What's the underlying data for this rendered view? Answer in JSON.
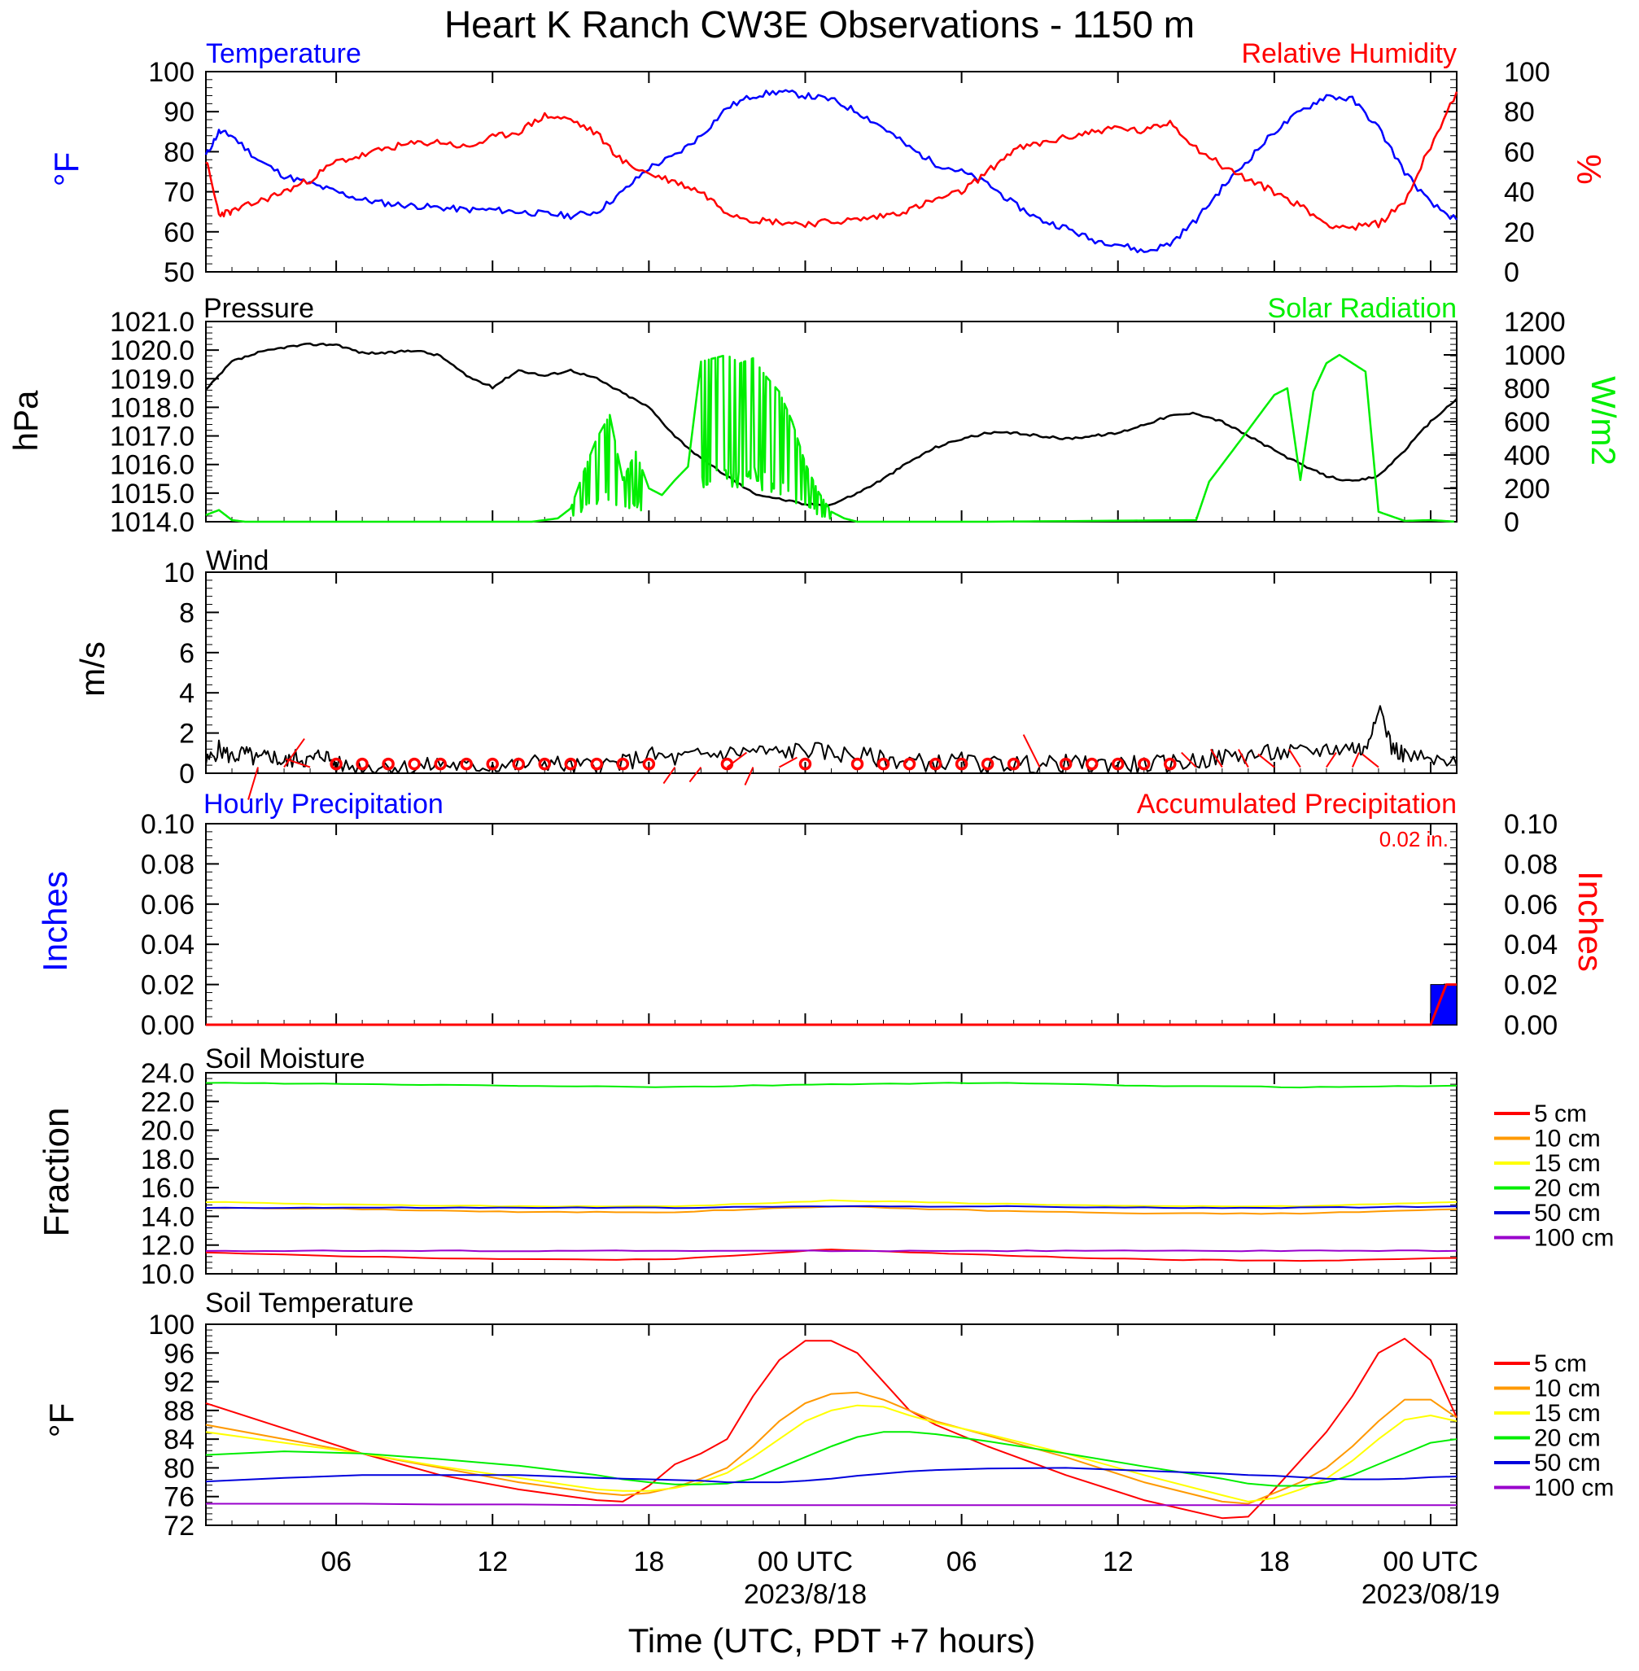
{
  "title": "Heart K Ranch CW3E Observations - 1150 m",
  "x_axis": {
    "label": "Time (UTC, PDT +7 hours)",
    "range_hours": [
      0,
      48
    ],
    "ticks": [
      {
        "h": 5,
        "label": "06"
      },
      {
        "h": 11,
        "label": "12"
      },
      {
        "h": 17,
        "label": "18"
      },
      {
        "h": 23,
        "label": "00 UTC",
        "date": "2023/8/18"
      },
      {
        "h": 29,
        "label": "06"
      },
      {
        "h": 35,
        "label": "12"
      },
      {
        "h": 41,
        "label": "18"
      },
      {
        "h": 47,
        "label": "00 UTC",
        "date": "2023/08/19"
      }
    ]
  },
  "legend_soil": [
    "5 cm",
    "10 cm",
    "15 cm",
    "20 cm",
    "50 cm",
    "100 cm"
  ],
  "colors": {
    "blue": "#0000ff",
    "red": "#ff0000",
    "green": "#00ee00",
    "black": "#000000",
    "d5": "#ff0000",
    "d10": "#ff9900",
    "d15": "#ffff00",
    "d20": "#00ee00",
    "d50": "#0000dd",
    "d100": "#9900cc"
  },
  "chart_data": [
    {
      "type": "line",
      "panel": "temperature_humidity",
      "left_title": "Temperature",
      "right_title": "Relative Humidity",
      "ylabel_left": "°F",
      "ylabel_right": "%",
      "ylim_left": [
        50,
        100
      ],
      "ylim_right": [
        0,
        100
      ],
      "yticks_left": [
        50,
        60,
        70,
        80,
        90,
        100
      ],
      "yticks_right": [
        0,
        20,
        40,
        60,
        80,
        100
      ],
      "series": [
        {
          "axis": "left",
          "color": "#0000ff",
          "x": [
            0,
            0.5,
            1,
            2,
            3,
            4,
            5,
            6,
            7,
            8,
            9,
            10,
            11,
            12,
            13,
            14,
            15,
            16,
            17,
            18,
            19,
            20,
            21,
            22,
            23,
            24,
            25,
            26,
            27,
            28,
            29,
            30,
            31,
            32,
            33,
            34,
            35,
            36,
            37,
            38,
            39,
            40,
            41,
            42,
            43,
            44,
            45,
            46,
            47,
            48
          ],
          "values": [
            79,
            85,
            84,
            78,
            74,
            72,
            70,
            68,
            67,
            66.5,
            66,
            65.5,
            65.5,
            65,
            64.5,
            64,
            65,
            70,
            76,
            79,
            84,
            91,
            94,
            95,
            94,
            93,
            90,
            86,
            81,
            77,
            75,
            72,
            67,
            63,
            61,
            58,
            57,
            55,
            57,
            63,
            71,
            78,
            85,
            90,
            94,
            93,
            86,
            75,
            67,
            63
          ]
        },
        {
          "axis": "right",
          "color": "#ff0000",
          "x": [
            0,
            0.5,
            1,
            2,
            3,
            4,
            5,
            6,
            7,
            8,
            9,
            10,
            11,
            12,
            13,
            14,
            15,
            16,
            17,
            18,
            19,
            20,
            21,
            22,
            23,
            24,
            25,
            26,
            27,
            28,
            29,
            30,
            31,
            32,
            33,
            34,
            35,
            36,
            37,
            38,
            39,
            40,
            41,
            42,
            43,
            44,
            45,
            46,
            47,
            48
          ],
          "values": [
            56,
            29,
            30,
            35,
            40,
            46,
            55,
            58,
            62,
            64,
            65,
            62,
            67,
            70,
            78,
            76,
            69,
            55,
            49,
            45,
            40,
            30,
            26,
            25,
            24,
            25,
            26,
            28,
            31,
            36,
            40,
            50,
            61,
            64,
            67,
            70,
            72,
            70,
            75,
            62,
            53,
            46,
            40,
            33,
            24,
            22,
            24,
            35,
            63,
            90
          ]
        }
      ]
    },
    {
      "type": "line",
      "panel": "pressure_solar",
      "left_title": "Pressure",
      "right_title": "Solar Radiation",
      "ylabel_left": "hPa",
      "ylabel_right": "W/m2",
      "ylim_left": [
        1014.0,
        1021.0
      ],
      "ylim_right": [
        0,
        1200
      ],
      "yticks_left": [
        "1014.0",
        "1015.0",
        "1016.0",
        "1017.0",
        "1018.0",
        "1019.0",
        "1020.0",
        "1021.0"
      ],
      "yticks_right": [
        0,
        200,
        400,
        600,
        800,
        1000,
        1200
      ],
      "series": [
        {
          "axis": "left",
          "color": "#000000",
          "x": [
            0,
            1,
            2,
            3,
            4,
            5,
            6,
            7,
            8,
            9,
            10,
            11,
            12,
            13,
            14,
            15,
            16,
            17,
            18,
            19,
            20,
            21,
            22,
            23,
            24,
            25,
            26,
            27,
            28,
            29,
            30,
            31,
            32,
            33,
            34,
            35,
            36,
            37,
            38,
            39,
            40,
            41,
            42,
            43,
            44,
            45,
            46,
            47,
            48
          ],
          "values": [
            1018.6,
            1019.6,
            1019.9,
            1020.1,
            1020.2,
            1020.2,
            1019.9,
            1019.9,
            1020.0,
            1019.8,
            1019.1,
            1018.7,
            1019.3,
            1019.1,
            1019.3,
            1019.0,
            1018.5,
            1018.0,
            1017.0,
            1016.2,
            1015.6,
            1015.0,
            1014.8,
            1014.6,
            1014.6,
            1015.0,
            1015.5,
            1016.1,
            1016.6,
            1016.9,
            1017.1,
            1017.1,
            1017.0,
            1016.9,
            1017.0,
            1017.1,
            1017.4,
            1017.7,
            1017.8,
            1017.5,
            1017.0,
            1016.5,
            1016.0,
            1015.6,
            1015.4,
            1015.6,
            1016.5,
            1017.5,
            1018.3
          ]
        },
        {
          "axis": "right",
          "color": "#00ee00",
          "x": [
            0,
            0.5,
            1,
            1.5,
            3,
            6,
            10,
            12.5,
            13.5,
            14,
            14.5,
            15,
            15.5,
            16,
            16.5,
            17,
            17.5,
            18,
            18.5,
            19,
            19.5,
            20,
            20.5,
            21,
            21.5,
            22,
            22.5,
            23,
            23.5,
            24,
            24.5,
            25,
            30,
            38,
            38.5,
            40,
            41,
            41.5,
            42,
            42.5,
            43,
            43.5,
            44,
            44.5,
            45,
            46,
            47,
            48
          ],
          "values": [
            40,
            70,
            10,
            0,
            0,
            0,
            0,
            0,
            20,
            80,
            300,
            500,
            640,
            250,
            420,
            200,
            160,
            250,
            330,
            960,
            980,
            1000,
            950,
            980,
            870,
            780,
            600,
            350,
            180,
            60,
            20,
            0,
            0,
            10,
            240,
            550,
            760,
            800,
            250,
            780,
            950,
            1000,
            950,
            900,
            60,
            5,
            10,
            0
          ]
        }
      ]
    },
    {
      "type": "line",
      "panel": "wind",
      "left_title": "Wind",
      "ylabel_left": "m/s",
      "ylim_left": [
        0,
        10
      ],
      "yticks_left": [
        0,
        2,
        4,
        6,
        8,
        10
      ],
      "series": [
        {
          "axis": "left",
          "color": "#000000",
          "x": [
            0,
            0.5,
            1,
            1.5,
            2,
            2.5,
            3,
            3.5,
            4,
            4.5,
            5,
            6,
            7,
            8,
            9,
            10,
            11,
            12,
            13,
            14,
            15,
            16,
            17,
            18,
            19,
            20,
            21,
            22,
            23,
            24,
            25,
            26,
            27,
            28,
            29,
            30,
            31,
            32,
            33,
            34,
            35,
            36,
            37,
            38,
            39,
            40,
            41,
            42,
            43,
            44,
            44.5,
            45,
            45.5,
            46,
            47,
            48
          ],
          "values": [
            0.5,
            1.2,
            0.8,
            1.0,
            0.6,
            0.9,
            0.5,
            0.8,
            0.6,
            1.0,
            0.4,
            0.3,
            0.4,
            0.2,
            0.5,
            0.3,
            0.4,
            0.4,
            0.6,
            0.3,
            0.4,
            0.5,
            0.9,
            0.7,
            0.9,
            1.0,
            1.1,
            1.0,
            1.2,
            1.0,
            0.9,
            0.7,
            0.6,
            0.5,
            0.6,
            0.4,
            0.5,
            0.4,
            0.5,
            0.4,
            0.5,
            0.4,
            0.5,
            0.6,
            0.8,
            0.9,
            1.0,
            1.0,
            1.2,
            1.3,
            1.1,
            3.5,
            1.3,
            0.9,
            0.6,
            0.4
          ]
        }
      ]
    },
    {
      "type": "bar",
      "panel": "precipitation",
      "left_title": "Hourly Precipitation",
      "right_title": "Accumulated Precipitation",
      "annotation": "0.02 in.",
      "ylabel_left": "Inches",
      "ylabel_right": "Inches",
      "ylim_left": [
        0,
        0.1
      ],
      "ylim_right": [
        0,
        0.1
      ],
      "yticks": [
        "0.00",
        "0.02",
        "0.04",
        "0.06",
        "0.08",
        "0.10"
      ],
      "hourly": [
        {
          "x_start": 47,
          "x_end": 48,
          "value": 0.02
        }
      ],
      "accumulated": {
        "x": [
          0,
          47,
          47.3,
          47.6,
          48
        ],
        "values": [
          0,
          0,
          0.01,
          0.02,
          0.02
        ]
      }
    },
    {
      "type": "line",
      "panel": "soil_moisture",
      "left_title": "Soil Moisture",
      "ylabel_left": "Fraction",
      "ylim_left": [
        10.0,
        24.0
      ],
      "yticks_left": [
        "10.0",
        "12.0",
        "14.0",
        "16.0",
        "18.0",
        "20.0",
        "22.0",
        "24.0"
      ],
      "x": [
        0,
        6,
        12,
        18,
        24,
        30,
        36,
        42,
        48
      ],
      "series": [
        {
          "name": "5 cm",
          "color": "#ff0000",
          "values": [
            11.5,
            11.2,
            11.0,
            11.0,
            11.7,
            11.3,
            11.0,
            10.9,
            11.1
          ]
        },
        {
          "name": "10 cm",
          "color": "#ff9900",
          "values": [
            14.6,
            14.5,
            14.3,
            14.3,
            14.7,
            14.4,
            14.2,
            14.2,
            14.5
          ]
        },
        {
          "name": "15 cm",
          "color": "#ffff00",
          "values": [
            15.0,
            14.8,
            14.7,
            14.7,
            15.1,
            14.9,
            14.7,
            14.7,
            15.0
          ]
        },
        {
          "name": "20 cm",
          "color": "#00ee00",
          "values": [
            23.3,
            23.2,
            23.1,
            23.0,
            23.2,
            23.3,
            23.1,
            23.0,
            23.1
          ]
        },
        {
          "name": "50 cm",
          "color": "#0000dd",
          "values": [
            14.6,
            14.6,
            14.6,
            14.6,
            14.7,
            14.7,
            14.6,
            14.6,
            14.7
          ]
        },
        {
          "name": "100 cm",
          "color": "#9900cc",
          "values": [
            11.6,
            11.6,
            11.6,
            11.6,
            11.6,
            11.6,
            11.6,
            11.6,
            11.6
          ]
        }
      ]
    },
    {
      "type": "line",
      "panel": "soil_temperature",
      "left_title": "Soil Temperature",
      "ylabel_left": "°F",
      "ylim_left": [
        72,
        100
      ],
      "yticks_left": [
        72,
        76,
        80,
        84,
        88,
        92,
        96,
        100
      ],
      "x": [
        0,
        3,
        6,
        9,
        12,
        15,
        16,
        17,
        18,
        19,
        20,
        21,
        22,
        23,
        24,
        25,
        26,
        27,
        28,
        30,
        33,
        36,
        39,
        40,
        41,
        42,
        43,
        44,
        45,
        46,
        47,
        48
      ],
      "series": [
        {
          "name": "5 cm",
          "color": "#ff0000",
          "values": [
            89,
            85.5,
            82,
            79,
            77,
            75.5,
            75.3,
            77.5,
            80.5,
            82,
            84,
            90,
            95,
            97.7,
            97.7,
            96,
            92,
            88,
            86,
            83,
            79,
            75.5,
            73,
            73.2,
            77,
            81,
            85,
            90,
            96,
            98,
            95,
            87
          ]
        },
        {
          "name": "10 cm",
          "color": "#ff9900",
          "values": [
            86,
            84,
            82,
            80,
            78,
            76.5,
            76.2,
            76.5,
            77.3,
            78.5,
            80,
            83,
            86.5,
            89,
            90.3,
            90.5,
            89.5,
            88,
            86.5,
            84.5,
            81.5,
            78,
            75.3,
            75,
            76.5,
            78,
            80,
            83,
            86.5,
            89.5,
            89.5,
            87
          ]
        },
        {
          "name": "15 cm",
          "color": "#ffff00",
          "values": [
            85,
            83.5,
            82,
            80.2,
            78.6,
            77,
            76.8,
            76.8,
            77.2,
            78,
            79.3,
            81.5,
            84,
            86.5,
            88,
            88.7,
            88.5,
            87.3,
            86.3,
            84.7,
            82,
            79,
            76.2,
            75.3,
            75.8,
            77,
            78.5,
            81,
            84,
            86.7,
            87.3,
            86.5
          ]
        },
        {
          "name": "20 cm",
          "color": "#00ee00",
          "values": [
            81.8,
            82.3,
            82,
            81.2,
            80.3,
            79,
            78.4,
            78,
            77.7,
            77.7,
            77.8,
            78.5,
            80,
            81.5,
            83,
            84.3,
            85,
            85,
            84.7,
            83.7,
            82,
            80.2,
            78.5,
            77.8,
            77.5,
            77.5,
            78,
            79,
            80.5,
            82,
            83.5,
            84
          ]
        },
        {
          "name": "50 cm",
          "color": "#0000dd",
          "values": [
            78.1,
            78.6,
            79,
            79,
            79,
            78.6,
            78.5,
            78.4,
            78.3,
            78.2,
            78,
            78,
            78,
            78.2,
            78.5,
            78.9,
            79.2,
            79.5,
            79.7,
            79.9,
            80,
            79.6,
            79.2,
            79,
            78.9,
            78.7,
            78.5,
            78.4,
            78.4,
            78.5,
            78.7,
            78.8
          ]
        },
        {
          "name": "100 cm",
          "color": "#9900cc",
          "values": [
            75,
            75,
            75,
            74.9,
            74.9,
            74.8,
            74.8,
            74.8,
            74.8,
            74.8,
            74.8,
            74.8,
            74.8,
            74.8,
            74.8,
            74.8,
            74.8,
            74.8,
            74.8,
            74.8,
            74.8,
            74.8,
            74.8,
            74.8,
            74.8,
            74.8,
            74.8,
            74.8,
            74.8,
            74.8,
            74.8,
            74.8
          ]
        }
      ]
    }
  ]
}
